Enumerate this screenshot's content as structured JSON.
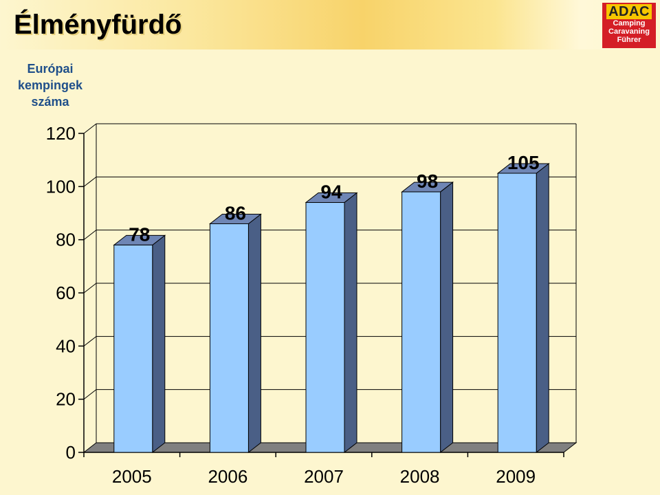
{
  "page": {
    "title": "Élményfürdő"
  },
  "logo": {
    "brand": "ADAC",
    "lines": [
      "Camping",
      "Caravaning",
      "Führer"
    ]
  },
  "colors": {
    "bar_front": "#99ccff",
    "bar_side": "#4a5f86",
    "bar_top": "#6f86b5",
    "floor": "#808080"
  },
  "chart_data": {
    "type": "bar",
    "title": "",
    "ylabel_lines": [
      "Európai",
      "kempingek",
      "száma"
    ],
    "categories": [
      "2005",
      "2006",
      "2007",
      "2008",
      "2009"
    ],
    "values": [
      78,
      86,
      94,
      98,
      105
    ],
    "yticks": [
      0,
      20,
      40,
      60,
      80,
      100,
      120
    ],
    "ylim": [
      0,
      120
    ],
    "grid": true,
    "legend": "none",
    "style": "3d"
  }
}
